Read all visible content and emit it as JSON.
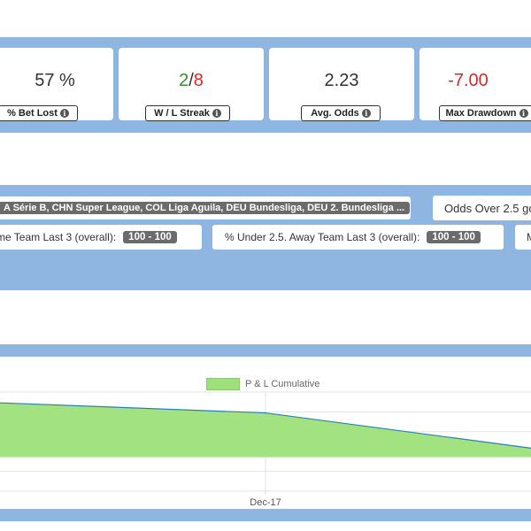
{
  "stats": [
    {
      "value": "57 %",
      "label": "% Bet Lost",
      "color": "#333333"
    },
    {
      "value_a": "2",
      "value_sep": "/",
      "value_b": "8",
      "label": "W / L Streak",
      "color_a": "#3a8a2e",
      "color_b": "#d42a2a"
    },
    {
      "value": "2.23",
      "label": "Avg. Odds",
      "color": "#333333"
    },
    {
      "value": "-7.00",
      "label": "Max Drawdown",
      "color": "#d42a2a"
    }
  ],
  "filters": {
    "leagues_tag": "A Série B, CHN Super League, COL Liga Aguila, DEU Bundesliga, DEU 2. Bundesliga ...",
    "odds_label": "Odds Over 2.5 go",
    "home_label": "me Team Last 3 (overall):",
    "home_range": "100 - 100",
    "away_label": "% Under 2.5. Away Team Last 3 (overall):",
    "away_range": "100 - 100",
    "extra_label": "M"
  },
  "chart_data": {
    "type": "area",
    "series": [
      {
        "name": "P & L Cumulative",
        "color": "#9ee07a",
        "line_color": "#2b7fb8",
        "values": [
          2.1,
          1.7,
          0.35,
          -0.2
        ]
      }
    ],
    "x": [
      "",
      "Dec-17",
      "",
      ""
    ],
    "y_range": [
      -1.3,
      2.5
    ],
    "grid": true,
    "legend": "top-center"
  }
}
